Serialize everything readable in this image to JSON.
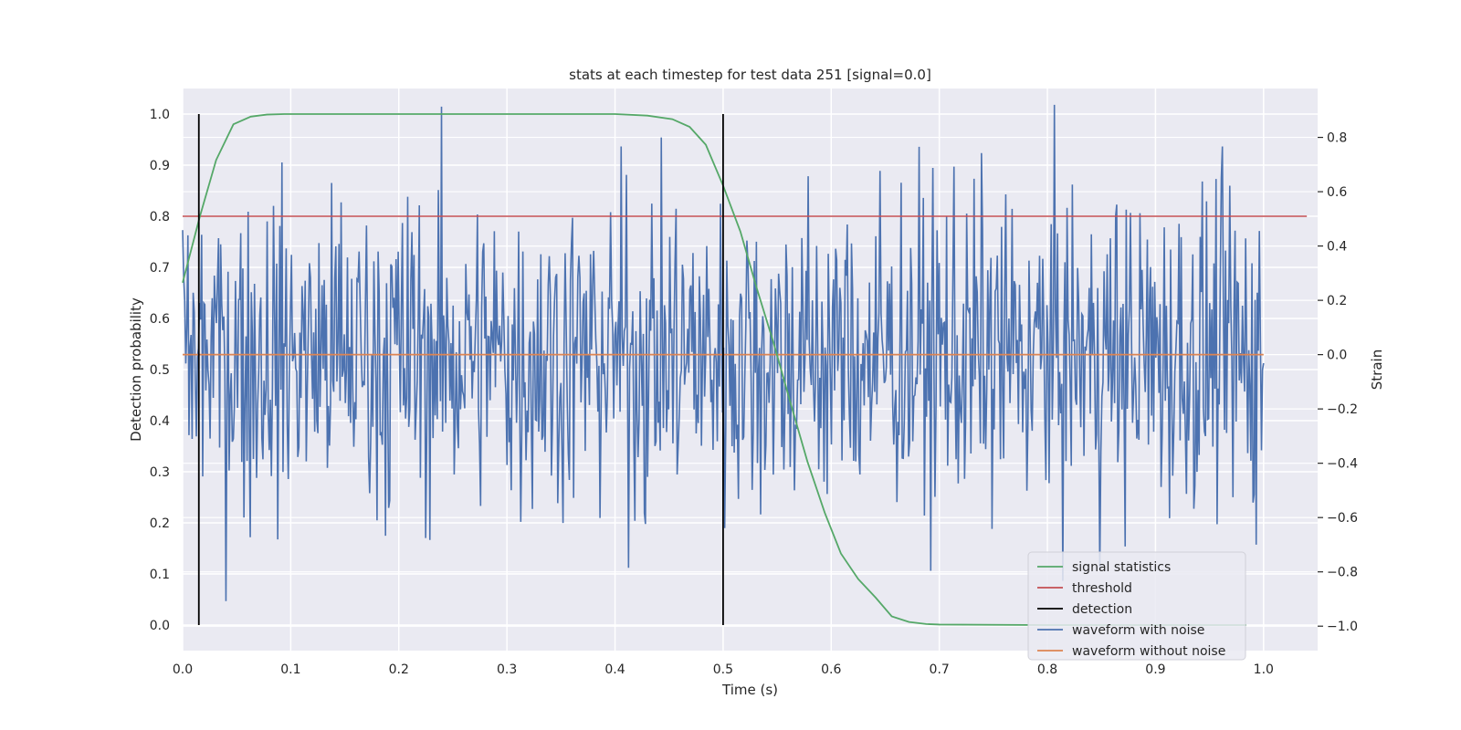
{
  "chart_data": {
    "type": "line",
    "title": "stats at each timestep for test data 251 [signal=0.0]",
    "xlabel": "Time (s)",
    "ylabel": "Detection probability",
    "y2label": "Strain",
    "xlim": [
      0.0,
      1.05
    ],
    "ylim": [
      -0.05,
      1.05
    ],
    "y2lim": [
      -1.09,
      0.98
    ],
    "xticks": [
      "0.0",
      "0.1",
      "0.2",
      "0.3",
      "0.4",
      "0.5",
      "0.6",
      "0.7",
      "0.8",
      "0.9",
      "1.0"
    ],
    "yticks": [
      "0.0",
      "0.1",
      "0.2",
      "0.3",
      "0.4",
      "0.5",
      "0.6",
      "0.7",
      "0.8",
      "0.9",
      "1.0"
    ],
    "y2ticks": [
      "−1.0",
      "−0.8",
      "−0.6",
      "−0.4",
      "−0.2",
      "0.0",
      "0.2",
      "0.4",
      "0.6",
      "0.8"
    ],
    "grid": true,
    "legend_position": "lower-right",
    "series": [
      {
        "name": "signal statistics",
        "axis": "left",
        "color": "#55a868",
        "x": [
          0.0,
          0.016,
          0.031,
          0.047,
          0.063,
          0.078,
          0.094,
          0.109,
          0.125,
          0.2,
          0.3,
          0.4,
          0.43,
          0.453,
          0.469,
          0.484,
          0.5,
          0.516,
          0.531,
          0.547,
          0.563,
          0.578,
          0.594,
          0.609,
          0.625,
          0.641,
          0.656,
          0.672,
          0.688,
          0.7,
          0.8,
          0.9,
          0.984
        ],
        "y": [
          0.67,
          0.8,
          0.91,
          0.98,
          0.995,
          0.999,
          1.0,
          1.0,
          1.0,
          1.0,
          1.0,
          1.0,
          0.997,
          0.99,
          0.975,
          0.94,
          0.86,
          0.77,
          0.66,
          0.55,
          0.43,
          0.32,
          0.22,
          0.14,
          0.09,
          0.054,
          0.017,
          0.006,
          0.002,
          0.001,
          0.0,
          0.0,
          0.0
        ]
      },
      {
        "name": "threshold",
        "axis": "left",
        "color": "#c44e52",
        "x": [
          0.0,
          1.04
        ],
        "y": [
          0.8,
          0.8
        ]
      },
      {
        "name": "detection",
        "axis": "left",
        "color": "#000000",
        "segments": [
          {
            "x": 0.015,
            "y0": 0.0,
            "y1": 1.0
          },
          {
            "x": 0.5,
            "y0": 0.0,
            "y1": 1.0
          }
        ]
      },
      {
        "name": "waveform with noise",
        "axis": "right",
        "color": "#4c72b0",
        "x_start": 0.0,
        "x_end": 1.0,
        "sample_count": 1024,
        "approx_mean": 0.0,
        "approx_std": 0.3,
        "approx_range": [
          -1.0,
          0.92
        ]
      },
      {
        "name": "waveform without noise",
        "axis": "right",
        "color": "#dd8452",
        "x": [
          0.0,
          1.0
        ],
        "y": [
          0.0,
          0.0
        ]
      }
    ]
  }
}
